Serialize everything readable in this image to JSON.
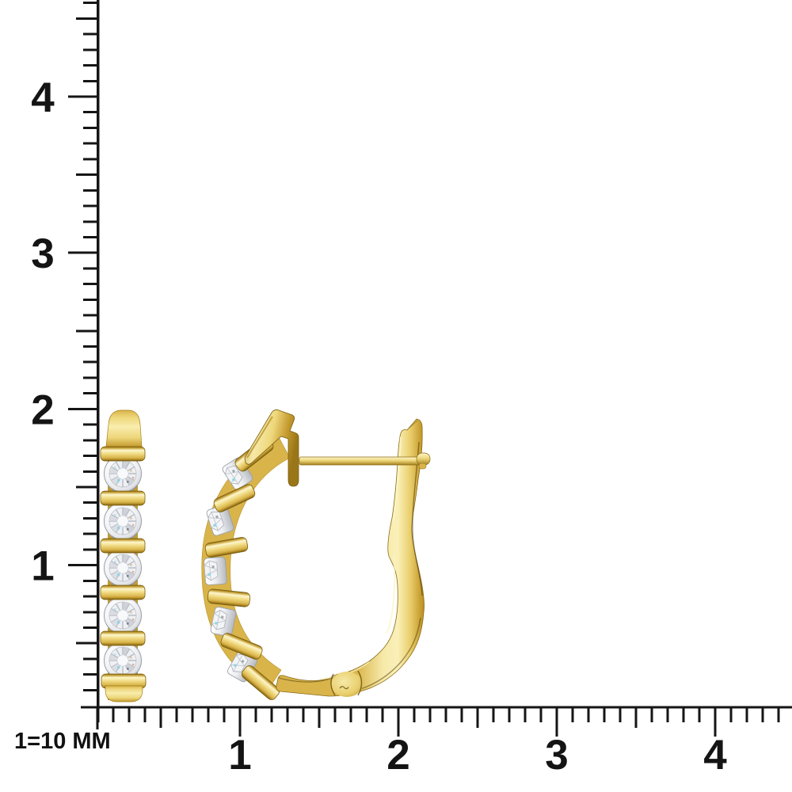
{
  "scale_note": "1=10 MM",
  "rulers": {
    "vertical_labels": [
      "4",
      "3",
      "2",
      "1"
    ],
    "horizontal_labels": [
      "1",
      "2",
      "3",
      "4"
    ],
    "line_color": "#151515"
  },
  "product": {
    "kind": "gold diamond hoop earrings, pair",
    "views": [
      "side profile with 5 round diamonds",
      "front angled hoop with 5 bar-set diamonds"
    ],
    "diamonds_visible_per_earring": 5,
    "palette": {
      "gold_highlight": "#fdf6cb",
      "gold_light": "#f3e294",
      "gold_mid": "#e7cb67",
      "gold_deep": "#c9a23a",
      "gold_shadow": "#8a6a15",
      "gold_edge_dark": "#4a3a05",
      "white_metal_light": "#ffffff",
      "white_metal_mid": "#e9ebee",
      "white_metal_dark": "#b6b9c0",
      "sparkle_blue": "#8fd2e6"
    },
    "background": "#ffffff"
  }
}
